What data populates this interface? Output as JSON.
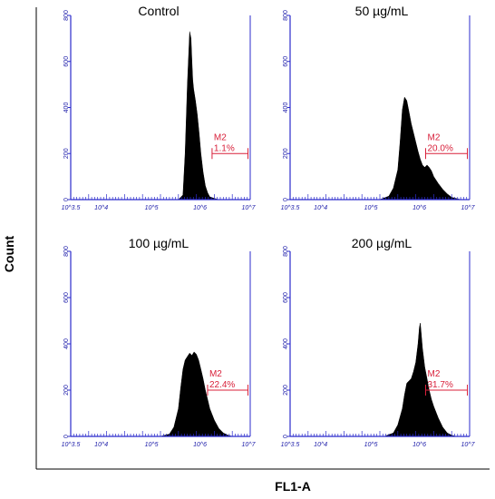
{
  "colors": {
    "axes": "#2b2bcc",
    "tick_text": "#1a1aa8",
    "histogram": "#000000",
    "gate": "#d8203a",
    "outer_axes": "#000000"
  },
  "figure": {
    "xlabel": "FL1-A",
    "ylabel": "Count"
  },
  "chart_data": [
    {
      "type": "area",
      "title": "Control",
      "x_scale": "log",
      "xlim": [
        3.0,
        7.0
      ],
      "ylim": [
        0,
        800
      ],
      "yticks": [
        0,
        200,
        400,
        600,
        800
      ],
      "ytick_labels": [
        "0",
        "200",
        "400",
        "600",
        "800"
      ],
      "xtick_labels": [
        "10^3.5",
        "10^4",
        "10^5",
        "10^6",
        "10^7"
      ],
      "x": [
        5.4,
        5.5,
        5.55,
        5.6,
        5.65,
        5.68,
        5.7,
        5.72,
        5.74,
        5.78,
        5.82,
        5.86,
        5.9,
        5.95,
        6.0,
        6.05,
        6.1,
        6.2,
        6.3
      ],
      "y": [
        0,
        20,
        200,
        500,
        730,
        700,
        600,
        520,
        480,
        430,
        370,
        290,
        200,
        120,
        60,
        30,
        12,
        5,
        0
      ],
      "gate": {
        "name": "M2",
        "percent": "1.1%",
        "range": [
          6.15,
          6.95
        ],
        "level": 200
      }
    },
    {
      "type": "area",
      "title": "50 µg/mL",
      "x_scale": "log",
      "xlim": [
        3.0,
        7.0
      ],
      "ylim": [
        0,
        800
      ],
      "yticks": [
        0,
        200,
        400,
        600,
        800
      ],
      "ytick_labels": [
        "0",
        "200",
        "400",
        "600",
        "800"
      ],
      "xtick_labels": [
        "10^3.5",
        "10^4",
        "10^5",
        "10^6",
        "10^7"
      ],
      "x": [
        5.0,
        5.2,
        5.3,
        5.4,
        5.45,
        5.5,
        5.55,
        5.6,
        5.65,
        5.7,
        5.75,
        5.8,
        5.85,
        5.9,
        5.95,
        6.0,
        6.05,
        6.1,
        6.15,
        6.2,
        6.3,
        6.4,
        6.5,
        6.6,
        6.8
      ],
      "y": [
        0,
        15,
        50,
        130,
        250,
        390,
        445,
        430,
        380,
        330,
        290,
        250,
        210,
        175,
        150,
        140,
        150,
        140,
        125,
        100,
        70,
        45,
        25,
        10,
        0
      ],
      "gate": {
        "name": "M2",
        "percent": "20.0%",
        "range": [
          6.02,
          6.95
        ],
        "level": 200
      }
    },
    {
      "type": "area",
      "title": "100 µg/mL",
      "x_scale": "log",
      "xlim": [
        3.0,
        7.0
      ],
      "ylim": [
        0,
        800
      ],
      "yticks": [
        0,
        200,
        400,
        600,
        800
      ],
      "ytick_labels": [
        "0",
        "200",
        "400",
        "600",
        "800"
      ],
      "xtick_labels": [
        "10^3.5",
        "10^4",
        "10^5",
        "10^6",
        "10^7"
      ],
      "x": [
        5.0,
        5.2,
        5.3,
        5.4,
        5.45,
        5.5,
        5.55,
        5.6,
        5.65,
        5.7,
        5.75,
        5.8,
        5.85,
        5.9,
        5.95,
        6.0,
        6.05,
        6.1,
        6.2,
        6.3,
        6.4,
        6.5,
        6.6
      ],
      "y": [
        0,
        10,
        40,
        120,
        210,
        290,
        330,
        345,
        360,
        350,
        365,
        355,
        330,
        290,
        250,
        200,
        160,
        120,
        70,
        35,
        15,
        5,
        0
      ],
      "gate": {
        "name": "M2",
        "percent": "22.4%",
        "range": [
          6.05,
          6.95
        ],
        "level": 200
      }
    },
    {
      "type": "area",
      "title": "200 µg/mL",
      "x_scale": "log",
      "xlim": [
        3.0,
        7.0
      ],
      "ylim": [
        0,
        800
      ],
      "yticks": [
        0,
        200,
        400,
        600,
        800
      ],
      "ytick_labels": [
        "0",
        "200",
        "400",
        "600",
        "800"
      ],
      "xtick_labels": [
        "10^3.5",
        "10^4",
        "10^5",
        "10^6",
        "10^7"
      ],
      "x": [
        5.1,
        5.3,
        5.4,
        5.5,
        5.55,
        5.6,
        5.65,
        5.7,
        5.75,
        5.8,
        5.85,
        5.88,
        5.9,
        5.92,
        5.95,
        6.0,
        6.05,
        6.1,
        6.15,
        6.2,
        6.3,
        6.4,
        6.5,
        6.6,
        6.7
      ],
      "y": [
        0,
        15,
        50,
        120,
        180,
        230,
        240,
        250,
        280,
        320,
        400,
        470,
        490,
        450,
        380,
        300,
        250,
        200,
        160,
        130,
        80,
        40,
        15,
        5,
        0
      ],
      "gate": {
        "name": "M2",
        "percent": "31.7%",
        "range": [
          6.02,
          6.95
        ],
        "level": 200
      }
    }
  ]
}
